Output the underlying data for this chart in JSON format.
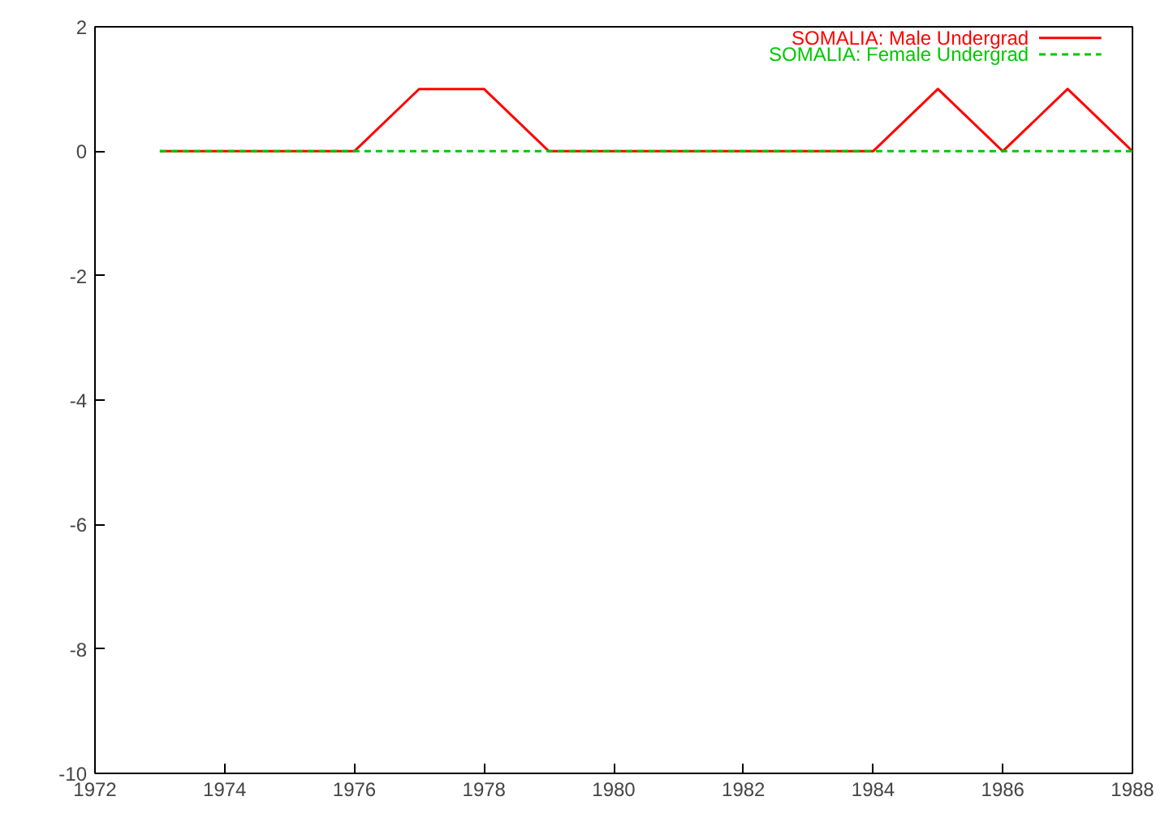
{
  "chart_data": {
    "type": "line",
    "x": [
      1973,
      1974,
      1975,
      1976,
      1977,
      1978,
      1979,
      1980,
      1981,
      1982,
      1983,
      1984,
      1985,
      1986,
      1987,
      1988
    ],
    "series": [
      {
        "name": "SOMALIA: Male Undergrad",
        "color": "#ff0000",
        "line_style": "solid",
        "values": [
          0,
          0,
          0,
          0,
          1,
          1,
          0,
          0,
          0,
          0,
          0,
          0,
          1,
          0,
          1,
          0
        ]
      },
      {
        "name": "SOMALIA: Female Undergrad",
        "color": "#00c800",
        "line_style": "dashed",
        "values": [
          0,
          0,
          0,
          0,
          0,
          0,
          0,
          0,
          0,
          0,
          0,
          0,
          0,
          0,
          0,
          0
        ]
      }
    ],
    "xlim": [
      1972,
      1988
    ],
    "ylim": [
      -10,
      2
    ],
    "xticks": [
      1972,
      1974,
      1976,
      1978,
      1980,
      1982,
      1984,
      1986,
      1988
    ],
    "yticks": [
      -10,
      -8,
      -6,
      -4,
      -2,
      0,
      2
    ],
    "grid": false,
    "legend": "top right",
    "marker": "none"
  }
}
